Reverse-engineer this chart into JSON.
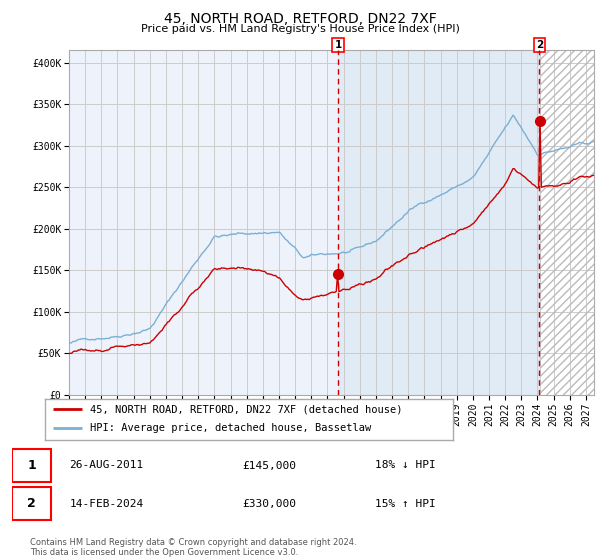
{
  "title": "45, NORTH ROAD, RETFORD, DN22 7XF",
  "subtitle": "Price paid vs. HM Land Registry's House Price Index (HPI)",
  "ylabel_ticks": [
    "£0",
    "£50K",
    "£100K",
    "£150K",
    "£200K",
    "£250K",
    "£300K",
    "£350K",
    "£400K"
  ],
  "ytick_values": [
    0,
    50000,
    100000,
    150000,
    200000,
    250000,
    300000,
    350000,
    400000
  ],
  "ylim": [
    0,
    415000
  ],
  "xlim_start": 1995.0,
  "xlim_end": 2027.5,
  "hpi_color": "#7bafd4",
  "price_color": "#cc0000",
  "bg_color": "#eef3fb",
  "grid_color": "#cccccc",
  "sale1_date": 2011.65,
  "sale1_price": 145000,
  "sale1_label": "1",
  "sale2_date": 2024.12,
  "sale2_price": 330000,
  "sale2_label": "2",
  "legend_line1": "45, NORTH ROAD, RETFORD, DN22 7XF (detached house)",
  "legend_line2": "HPI: Average price, detached house, Bassetlaw",
  "table_row1": [
    "1",
    "26-AUG-2011",
    "£145,000",
    "18% ↓ HPI"
  ],
  "table_row2": [
    "2",
    "14-FEB-2024",
    "£330,000",
    "15% ↑ HPI"
  ],
  "footer": "Contains HM Land Registry data © Crown copyright and database right 2024.\nThis data is licensed under the Open Government Licence v3.0.",
  "shade_color": "#dce8f5",
  "title_fontsize": 10,
  "subtitle_fontsize": 8,
  "tick_fontsize": 7,
  "legend_fontsize": 7.5
}
